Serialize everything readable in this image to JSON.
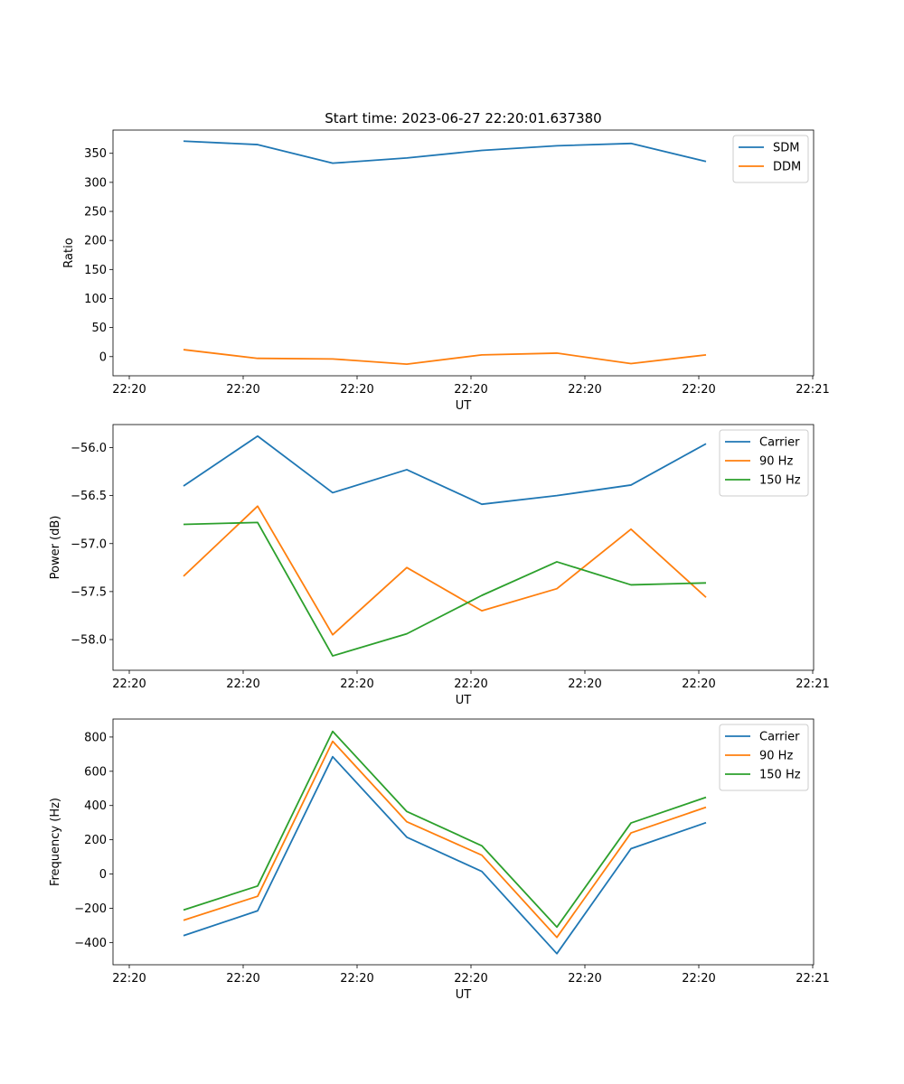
{
  "figure_title": "Start time: 2023-06-27 22:20:01.637380",
  "colors": {
    "blue": "#1f77b4",
    "orange": "#ff7f0e",
    "green": "#2ca02c"
  },
  "chart_data": [
    {
      "type": "line",
      "title": "Start time: 2023-06-27 22:20:01.637380",
      "xlabel": "UT",
      "ylabel": "Ratio",
      "x_tick_labels": [
        "22:20",
        "22:20",
        "22:20",
        "22:20",
        "22:20",
        "22:20",
        "22:21"
      ],
      "y_ticks": [
        0,
        50,
        100,
        150,
        200,
        250,
        300,
        350
      ],
      "ylim": [
        -33,
        390
      ],
      "legend": "upper right",
      "series": [
        {
          "name": "SDM",
          "color": "#1f77b4",
          "values": [
            371,
            365,
            333,
            342,
            355,
            363,
            367,
            336
          ]
        },
        {
          "name": "DDM",
          "color": "#ff7f0e",
          "values": [
            12,
            -3,
            -4,
            -13,
            3,
            6,
            -12,
            3
          ]
        }
      ]
    },
    {
      "type": "line",
      "xlabel": "UT",
      "ylabel": "Power (dB)",
      "x_tick_labels": [
        "22:20",
        "22:20",
        "22:20",
        "22:20",
        "22:20",
        "22:20",
        "22:21"
      ],
      "y_ticks": [
        "-58.0",
        "-57.5",
        "-57.0",
        "-56.5",
        "-56.0"
      ],
      "ylim": [
        -58.32,
        -55.76
      ],
      "legend": "upper right",
      "series": [
        {
          "name": "Carrier",
          "color": "#1f77b4",
          "values": [
            -56.4,
            -55.88,
            -56.47,
            -56.23,
            -56.59,
            -56.5,
            -56.39,
            -55.96
          ]
        },
        {
          "name": "90 Hz",
          "color": "#ff7f0e",
          "values": [
            -57.34,
            -56.61,
            -57.95,
            -57.25,
            -57.7,
            -57.47,
            -56.85,
            -57.56
          ]
        },
        {
          "name": "150 Hz",
          "color": "#2ca02c",
          "values": [
            -56.8,
            -56.78,
            -58.17,
            -57.94,
            -57.54,
            -57.19,
            -57.43,
            -57.41
          ]
        }
      ]
    },
    {
      "type": "line",
      "xlabel": "UT",
      "ylabel": "Frequency (Hz)",
      "x_tick_labels": [
        "22:20",
        "22:20",
        "22:20",
        "22:20",
        "22:20",
        "22:20",
        "22:21"
      ],
      "y_ticks": [
        -400,
        -200,
        0,
        200,
        400,
        600,
        800
      ],
      "ylim": [
        -530,
        905
      ],
      "legend": "upper right",
      "series": [
        {
          "name": "Carrier",
          "color": "#1f77b4",
          "values": [
            -360,
            -215,
            685,
            215,
            15,
            -465,
            148,
            300
          ]
        },
        {
          "name": "90 Hz",
          "color": "#ff7f0e",
          "values": [
            -270,
            -130,
            775,
            305,
            110,
            -370,
            240,
            390
          ]
        },
        {
          "name": "150 Hz",
          "color": "#2ca02c",
          "values": [
            -210,
            -70,
            833,
            365,
            165,
            -310,
            298,
            448
          ]
        }
      ]
    }
  ]
}
